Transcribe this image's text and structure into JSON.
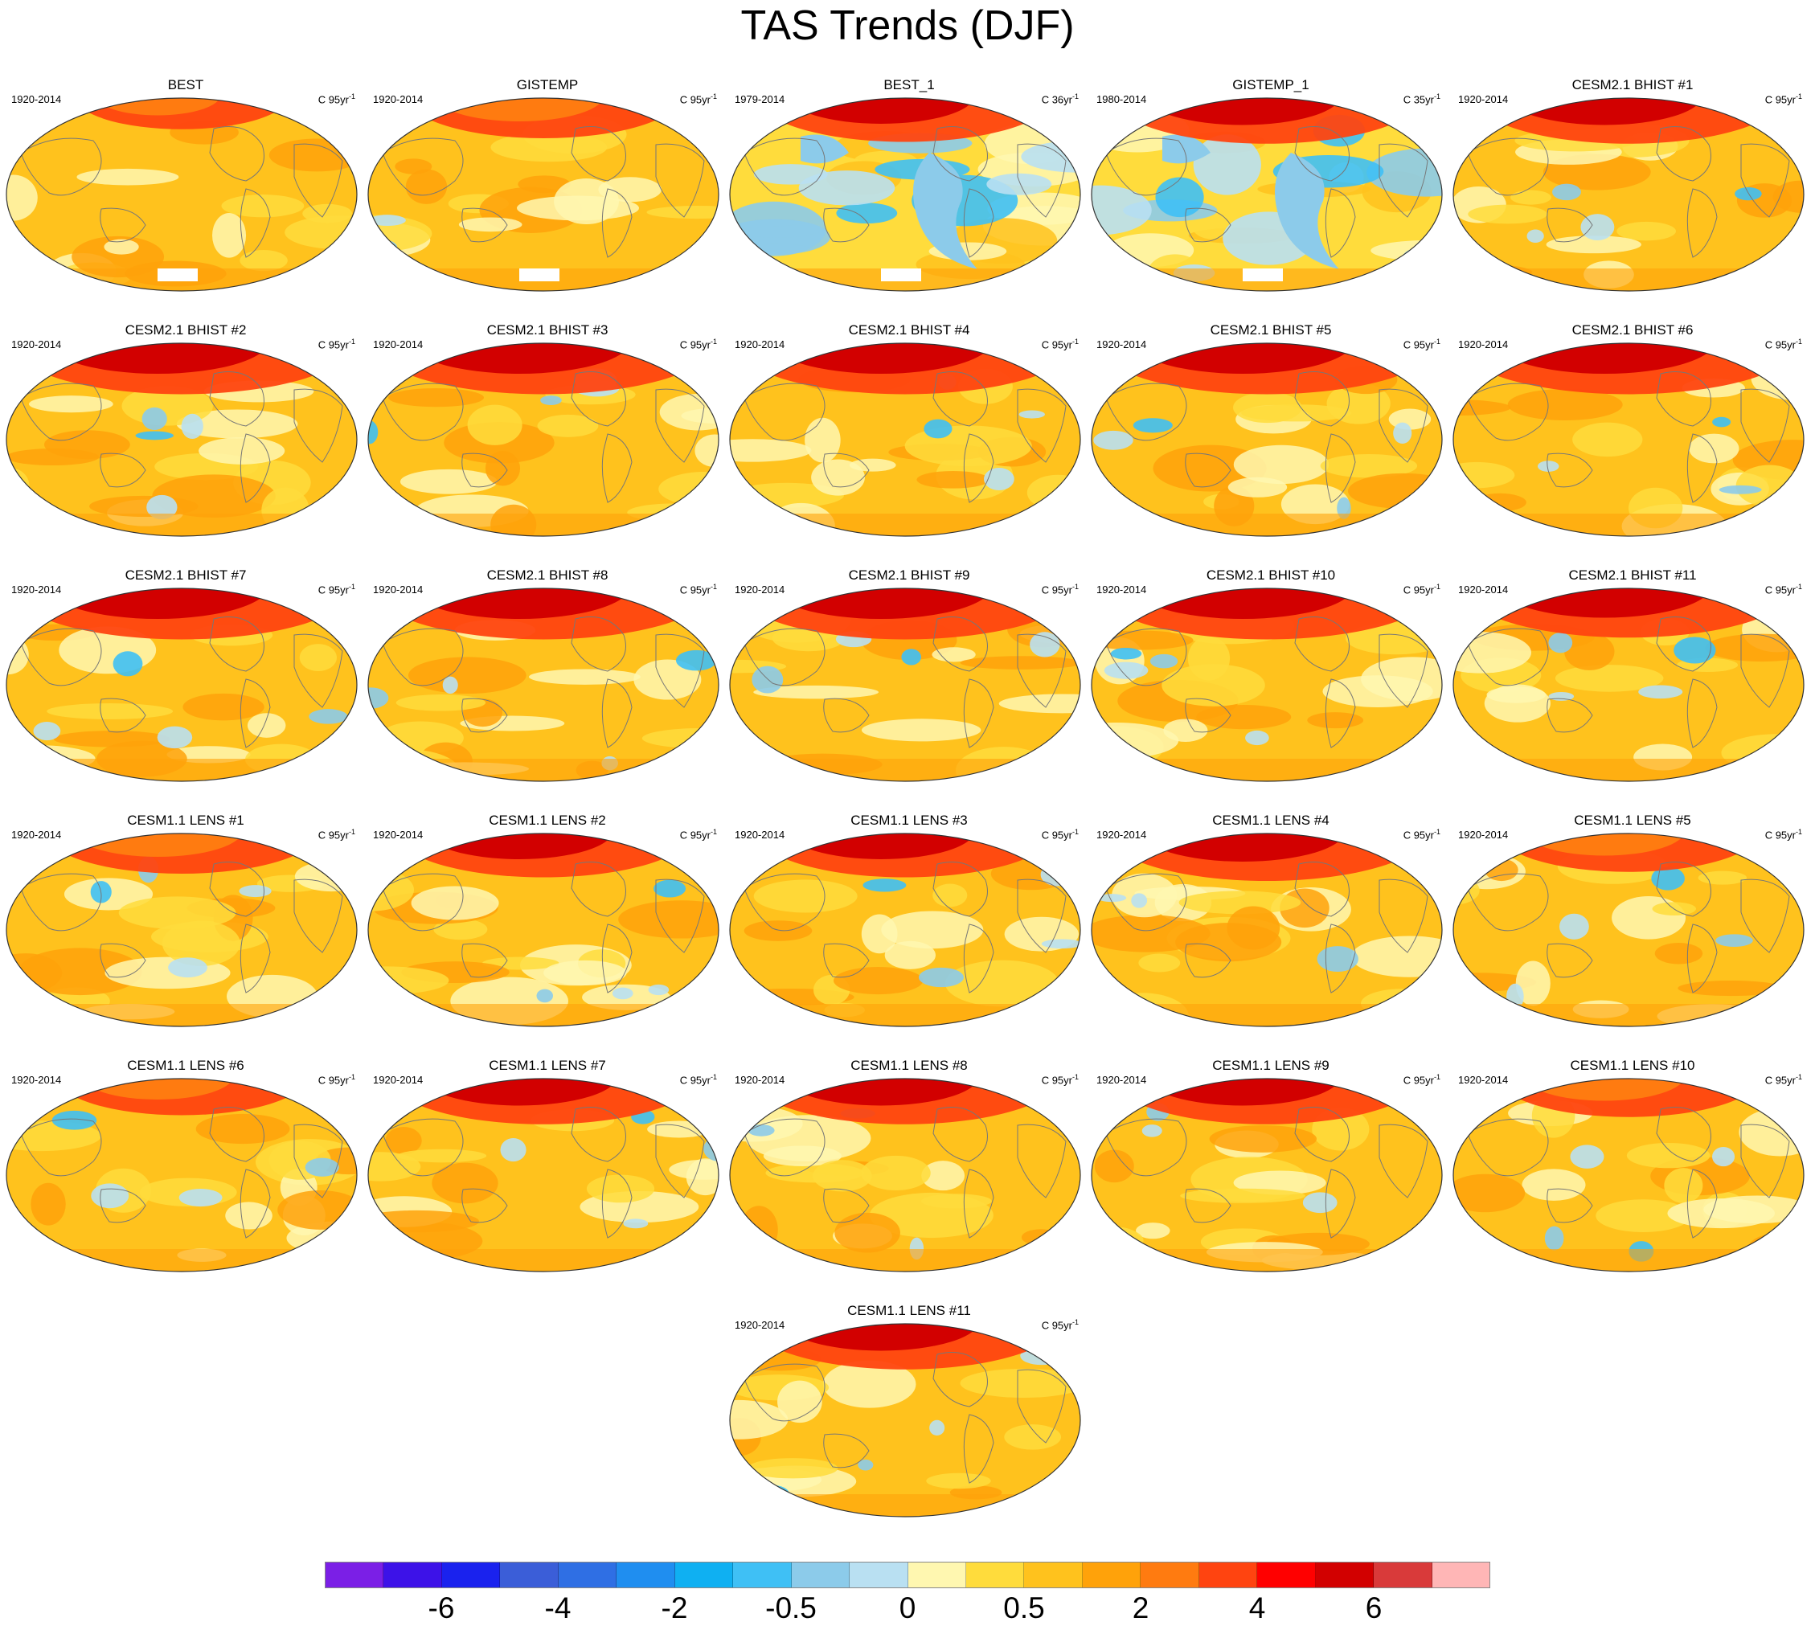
{
  "figure": {
    "title": "TAS Trends (DJF)"
  },
  "panels": [
    {
      "title": "BEST",
      "period": "1920-2014",
      "units_base": "C 95yr",
      "units_exp": "-1",
      "variant": "obs",
      "arctic": 0.35
    },
    {
      "title": "GISTEMP",
      "period": "1920-2014",
      "units_base": "C 95yr",
      "units_exp": "-1",
      "variant": "obs",
      "arctic": 0.6
    },
    {
      "title": "BEST_1",
      "period": "1979-2014",
      "units_base": "C 36yr",
      "units_exp": "-1",
      "variant": "cool",
      "arctic": 0.7
    },
    {
      "title": "GISTEMP_1",
      "period": "1980-2014",
      "units_base": "C 35yr",
      "units_exp": "-1",
      "variant": "cool",
      "arctic": 0.75
    },
    {
      "title": "CESM2.1 BHIST #1",
      "period": "1920-2014",
      "units_base": "C 95yr",
      "units_exp": "-1",
      "variant": "model",
      "arctic": 0.75
    },
    {
      "title": "CESM2.1 BHIST #2",
      "period": "1920-2014",
      "units_base": "C 95yr",
      "units_exp": "-1",
      "variant": "model",
      "arctic": 0.9
    },
    {
      "title": "CESM2.1 BHIST #3",
      "period": "1920-2014",
      "units_base": "C 95yr",
      "units_exp": "-1",
      "variant": "model",
      "arctic": 0.9
    },
    {
      "title": "CESM2.1 BHIST #4",
      "period": "1920-2014",
      "units_base": "C 95yr",
      "units_exp": "-1",
      "variant": "model",
      "arctic": 0.9
    },
    {
      "title": "CESM2.1 BHIST #5",
      "period": "1920-2014",
      "units_base": "C 95yr",
      "units_exp": "-1",
      "variant": "model",
      "arctic": 0.9
    },
    {
      "title": "CESM2.1 BHIST #6",
      "period": "1920-2014",
      "units_base": "C 95yr",
      "units_exp": "-1",
      "variant": "model",
      "arctic": 0.9
    },
    {
      "title": "CESM2.1 BHIST #7",
      "period": "1920-2014",
      "units_base": "C 95yr",
      "units_exp": "-1",
      "variant": "model",
      "arctic": 0.9
    },
    {
      "title": "CESM2.1 BHIST #8",
      "period": "1920-2014",
      "units_base": "C 95yr",
      "units_exp": "-1",
      "variant": "model",
      "arctic": 0.9
    },
    {
      "title": "CESM2.1 BHIST #9",
      "period": "1920-2014",
      "units_base": "C 95yr",
      "units_exp": "-1",
      "variant": "model",
      "arctic": 0.9
    },
    {
      "title": "CESM2.1 BHIST #10",
      "period": "1920-2014",
      "units_base": "C 95yr",
      "units_exp": "-1",
      "variant": "model",
      "arctic": 0.9
    },
    {
      "title": "CESM2.1 BHIST #11",
      "period": "1920-2014",
      "units_base": "C 95yr",
      "units_exp": "-1",
      "variant": "model",
      "arctic": 0.85
    },
    {
      "title": "CESM1.1 LENS #1",
      "period": "1920-2014",
      "units_base": "C 95yr",
      "units_exp": "-1",
      "variant": "lens",
      "arctic": 0.6
    },
    {
      "title": "CESM1.1 LENS #2",
      "period": "1920-2014",
      "units_base": "C 95yr",
      "units_exp": "-1",
      "variant": "lens",
      "arctic": 0.7
    },
    {
      "title": "CESM1.1 LENS #3",
      "period": "1920-2014",
      "units_base": "C 95yr",
      "units_exp": "-1",
      "variant": "lens",
      "arctic": 0.7
    },
    {
      "title": "CESM1.1 LENS #4",
      "period": "1920-2014",
      "units_base": "C 95yr",
      "units_exp": "-1",
      "variant": "lens",
      "arctic": 0.8
    },
    {
      "title": "CESM1.1 LENS #5",
      "period": "1920-2014",
      "units_base": "C 95yr",
      "units_exp": "-1",
      "variant": "lens",
      "arctic": 0.55
    },
    {
      "title": "CESM1.1 LENS #6",
      "period": "1920-2014",
      "units_base": "C 95yr",
      "units_exp": "-1",
      "variant": "lens",
      "arctic": 0.5
    },
    {
      "title": "CESM1.1 LENS #7",
      "period": "1920-2014",
      "units_base": "C 95yr",
      "units_exp": "-1",
      "variant": "lens",
      "arctic": 0.75
    },
    {
      "title": "CESM1.1 LENS #8",
      "period": "1920-2014",
      "units_base": "C 95yr",
      "units_exp": "-1",
      "variant": "lens",
      "arctic": 0.75
    },
    {
      "title": "CESM1.1 LENS #9",
      "period": "1920-2014",
      "units_base": "C 95yr",
      "units_exp": "-1",
      "variant": "lens",
      "arctic": 0.75
    },
    {
      "title": "CESM1.1 LENS #10",
      "period": "1920-2014",
      "units_base": "C 95yr",
      "units_exp": "-1",
      "variant": "lens",
      "arctic": 0.55
    },
    {
      "title": "CESM1.1 LENS #11",
      "period": "1920-2014",
      "units_base": "C 95yr",
      "units_exp": "-1",
      "variant": "lens",
      "arctic": 0.75
    }
  ],
  "colorbar": {
    "colors": [
      "#7b1fe6",
      "#3d12e8",
      "#1a22ee",
      "#3b5ed8",
      "#2f6fe4",
      "#1f8ef0",
      "#0fb0f2",
      "#3fc0f5",
      "#8ccbea",
      "#b9e0f2",
      "#fff7b0",
      "#ffdc3c",
      "#ffc21d",
      "#ffa20a",
      "#ff7b10",
      "#ff4410",
      "#ff0000",
      "#d20000",
      "#d93a3a",
      "#ffb6b6"
    ],
    "labels": [
      "-6",
      "-4",
      "-2",
      "-0.5",
      "0",
      "0.5",
      "2",
      "4",
      "6"
    ]
  },
  "palette": {
    "ocean_warm": "#ffc21d",
    "land_outline": "#777777",
    "missing": "#ffffff"
  }
}
